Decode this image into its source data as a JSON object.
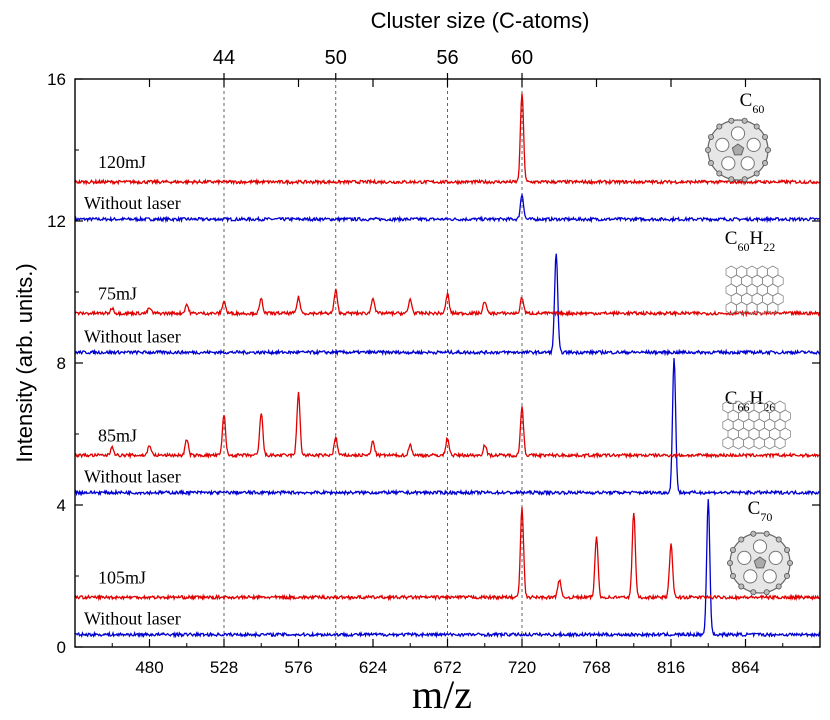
{
  "chart_data": {
    "type": "line",
    "title": "",
    "top_axis": {
      "label": "Cluster size (C-atoms)",
      "ticks": [
        {
          "label": "44",
          "mz": 528
        },
        {
          "label": "50",
          "mz": 600
        },
        {
          "label": "56",
          "mz": 672
        },
        {
          "label": "60",
          "mz": 720
        }
      ]
    },
    "xlabel": "m/z",
    "ylabel": "Intensity (arb. units.)",
    "xlim": [
      432,
      912
    ],
    "ylim": [
      0,
      16
    ],
    "xticks": [
      480,
      528,
      576,
      624,
      672,
      720,
      768,
      816,
      864
    ],
    "yticks": [
      0,
      4,
      8,
      12,
      16
    ],
    "vertical_guides_mz": [
      528,
      600,
      672,
      720
    ],
    "colors": {
      "laser": "#e00000",
      "no_laser": "#0000d0",
      "axis": "#000000",
      "guide": "#555555"
    },
    "panels": [
      {
        "molecule": "C60",
        "molecule_label": {
          "base": "C",
          "sub1": "60",
          "mid": "",
          "sub2": ""
        },
        "laser": {
          "name": "120mJ",
          "baseline": 13.1,
          "peaks": [
            {
              "mz": 720,
              "height": 2.5
            }
          ]
        },
        "no_laser": {
          "name": "Without laser",
          "baseline": 12.05,
          "peaks": [
            {
              "mz": 720,
              "height": 0.7
            }
          ]
        }
      },
      {
        "molecule": "C60H22",
        "molecule_label": {
          "base": "C",
          "sub1": "60",
          "mid": "H",
          "sub2": "22"
        },
        "laser": {
          "name": "75mJ",
          "baseline": 9.4,
          "peaks": [
            {
              "mz": 456,
              "height": 0.15
            },
            {
              "mz": 480,
              "height": 0.15
            },
            {
              "mz": 504,
              "height": 0.25
            },
            {
              "mz": 528,
              "height": 0.35
            },
            {
              "mz": 552,
              "height": 0.4
            },
            {
              "mz": 576,
              "height": 0.45
            },
            {
              "mz": 600,
              "height": 0.65
            },
            {
              "mz": 624,
              "height": 0.45
            },
            {
              "mz": 648,
              "height": 0.4
            },
            {
              "mz": 672,
              "height": 0.55
            },
            {
              "mz": 696,
              "height": 0.35
            },
            {
              "mz": 720,
              "height": 0.45
            }
          ]
        },
        "no_laser": {
          "name": "Without laser",
          "baseline": 8.3,
          "peaks": [
            {
              "mz": 742,
              "height": 2.8
            }
          ]
        }
      },
      {
        "molecule": "C66H26",
        "molecule_label": {
          "base": "C",
          "sub1": "66",
          "mid": "H",
          "sub2": "26"
        },
        "laser": {
          "name": "85mJ",
          "baseline": 5.4,
          "peaks": [
            {
              "mz": 456,
              "height": 0.25
            },
            {
              "mz": 480,
              "height": 0.3
            },
            {
              "mz": 504,
              "height": 0.45
            },
            {
              "mz": 528,
              "height": 1.15
            },
            {
              "mz": 552,
              "height": 1.2
            },
            {
              "mz": 576,
              "height": 1.75
            },
            {
              "mz": 600,
              "height": 0.5
            },
            {
              "mz": 624,
              "height": 0.4
            },
            {
              "mz": 648,
              "height": 0.3
            },
            {
              "mz": 672,
              "height": 0.5
            },
            {
              "mz": 696,
              "height": 0.3
            },
            {
              "mz": 720,
              "height": 1.35
            }
          ]
        },
        "no_laser": {
          "name": "Without laser",
          "baseline": 4.35,
          "peaks": [
            {
              "mz": 818,
              "height": 3.8
            }
          ]
        }
      },
      {
        "molecule": "C70",
        "molecule_label": {
          "base": "C",
          "sub1": "70",
          "mid": "",
          "sub2": ""
        },
        "laser": {
          "name": "105mJ",
          "baseline": 1.4,
          "peaks": [
            {
              "mz": 720,
              "height": 2.5
            },
            {
              "mz": 744,
              "height": 0.5
            },
            {
              "mz": 768,
              "height": 1.7
            },
            {
              "mz": 792,
              "height": 2.4
            },
            {
              "mz": 816,
              "height": 1.5
            }
          ]
        },
        "no_laser": {
          "name": "Without laser",
          "baseline": 0.35,
          "peaks": [
            {
              "mz": 840,
              "height": 3.8
            }
          ]
        }
      }
    ]
  }
}
